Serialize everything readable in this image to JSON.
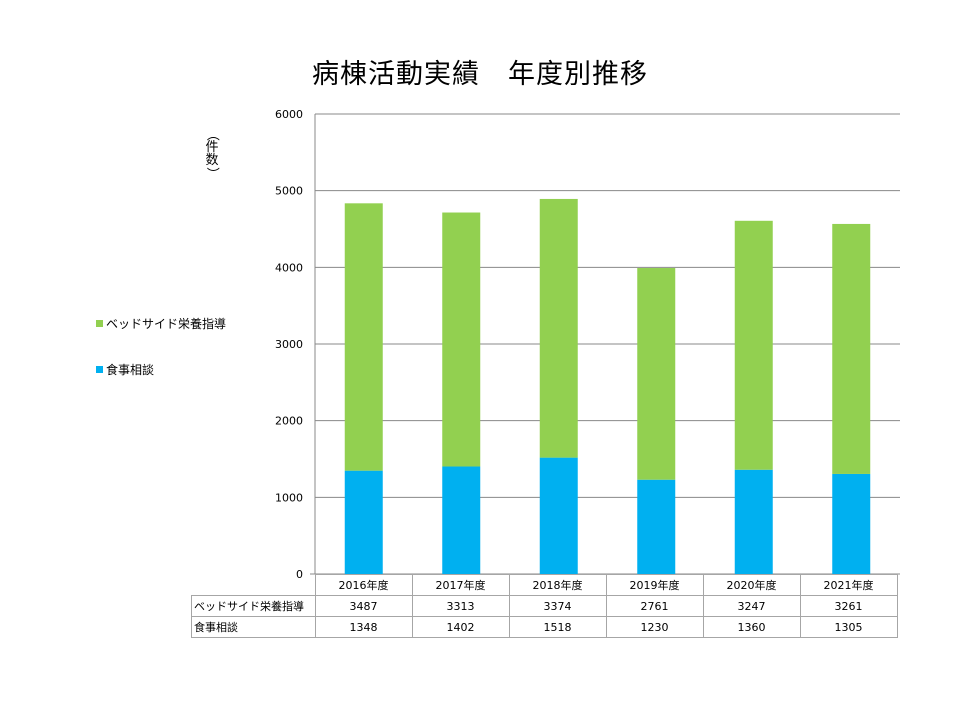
{
  "chart_data": {
    "type": "bar",
    "stacked": true,
    "title": "病棟活動実績　年度別推移",
    "ylabel_chars": [
      "（",
      "件",
      "数",
      "）"
    ],
    "categories": [
      "2016年度",
      "2017年度",
      "2018年度",
      "2019年度",
      "2020年度",
      "2021年度"
    ],
    "series": [
      {
        "name": "食事相談",
        "color": "#00b0f0",
        "values": [
          1348,
          1402,
          1518,
          1230,
          1360,
          1305
        ]
      },
      {
        "name": "ベッドサイド栄養指導",
        "color": "#92d050",
        "values": [
          3487,
          3313,
          3374,
          2761,
          3247,
          3261
        ]
      }
    ],
    "ylim": [
      0,
      6000
    ],
    "yticks": [
      "0",
      "1000",
      "2000",
      "3000",
      "4000",
      "5000",
      "6000"
    ],
    "grid": true,
    "legend_position": "left",
    "data_table": true
  }
}
